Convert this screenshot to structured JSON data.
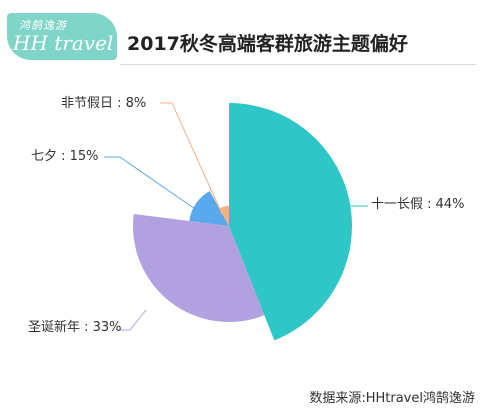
{
  "logo": {
    "cn": "鸿鹄逸游",
    "en": "HH travel",
    "color": "#7fd6c8"
  },
  "title": "2017秋冬高端客群旅游主题偏好",
  "source": "数据来源:HHtravel鸿鹄逸游",
  "chart_data": {
    "type": "pie",
    "title": "2017秋冬高端客群旅游主题偏好",
    "slices": [
      {
        "label": "十一长假",
        "value": 44,
        "color": "#2ec6c6",
        "display": "十一长假 : 44%"
      },
      {
        "label": "圣诞新年",
        "value": 33,
        "color": "#b2a1e0",
        "display": "圣诞新年 : 33%"
      },
      {
        "label": "七夕",
        "value": 15,
        "color": "#5aa9ee",
        "display": "七夕 : 15%"
      },
      {
        "label": "非节假日",
        "value": 8,
        "color": "#f4b183",
        "display": "非节假日 : 8%"
      }
    ],
    "style": "rose"
  }
}
